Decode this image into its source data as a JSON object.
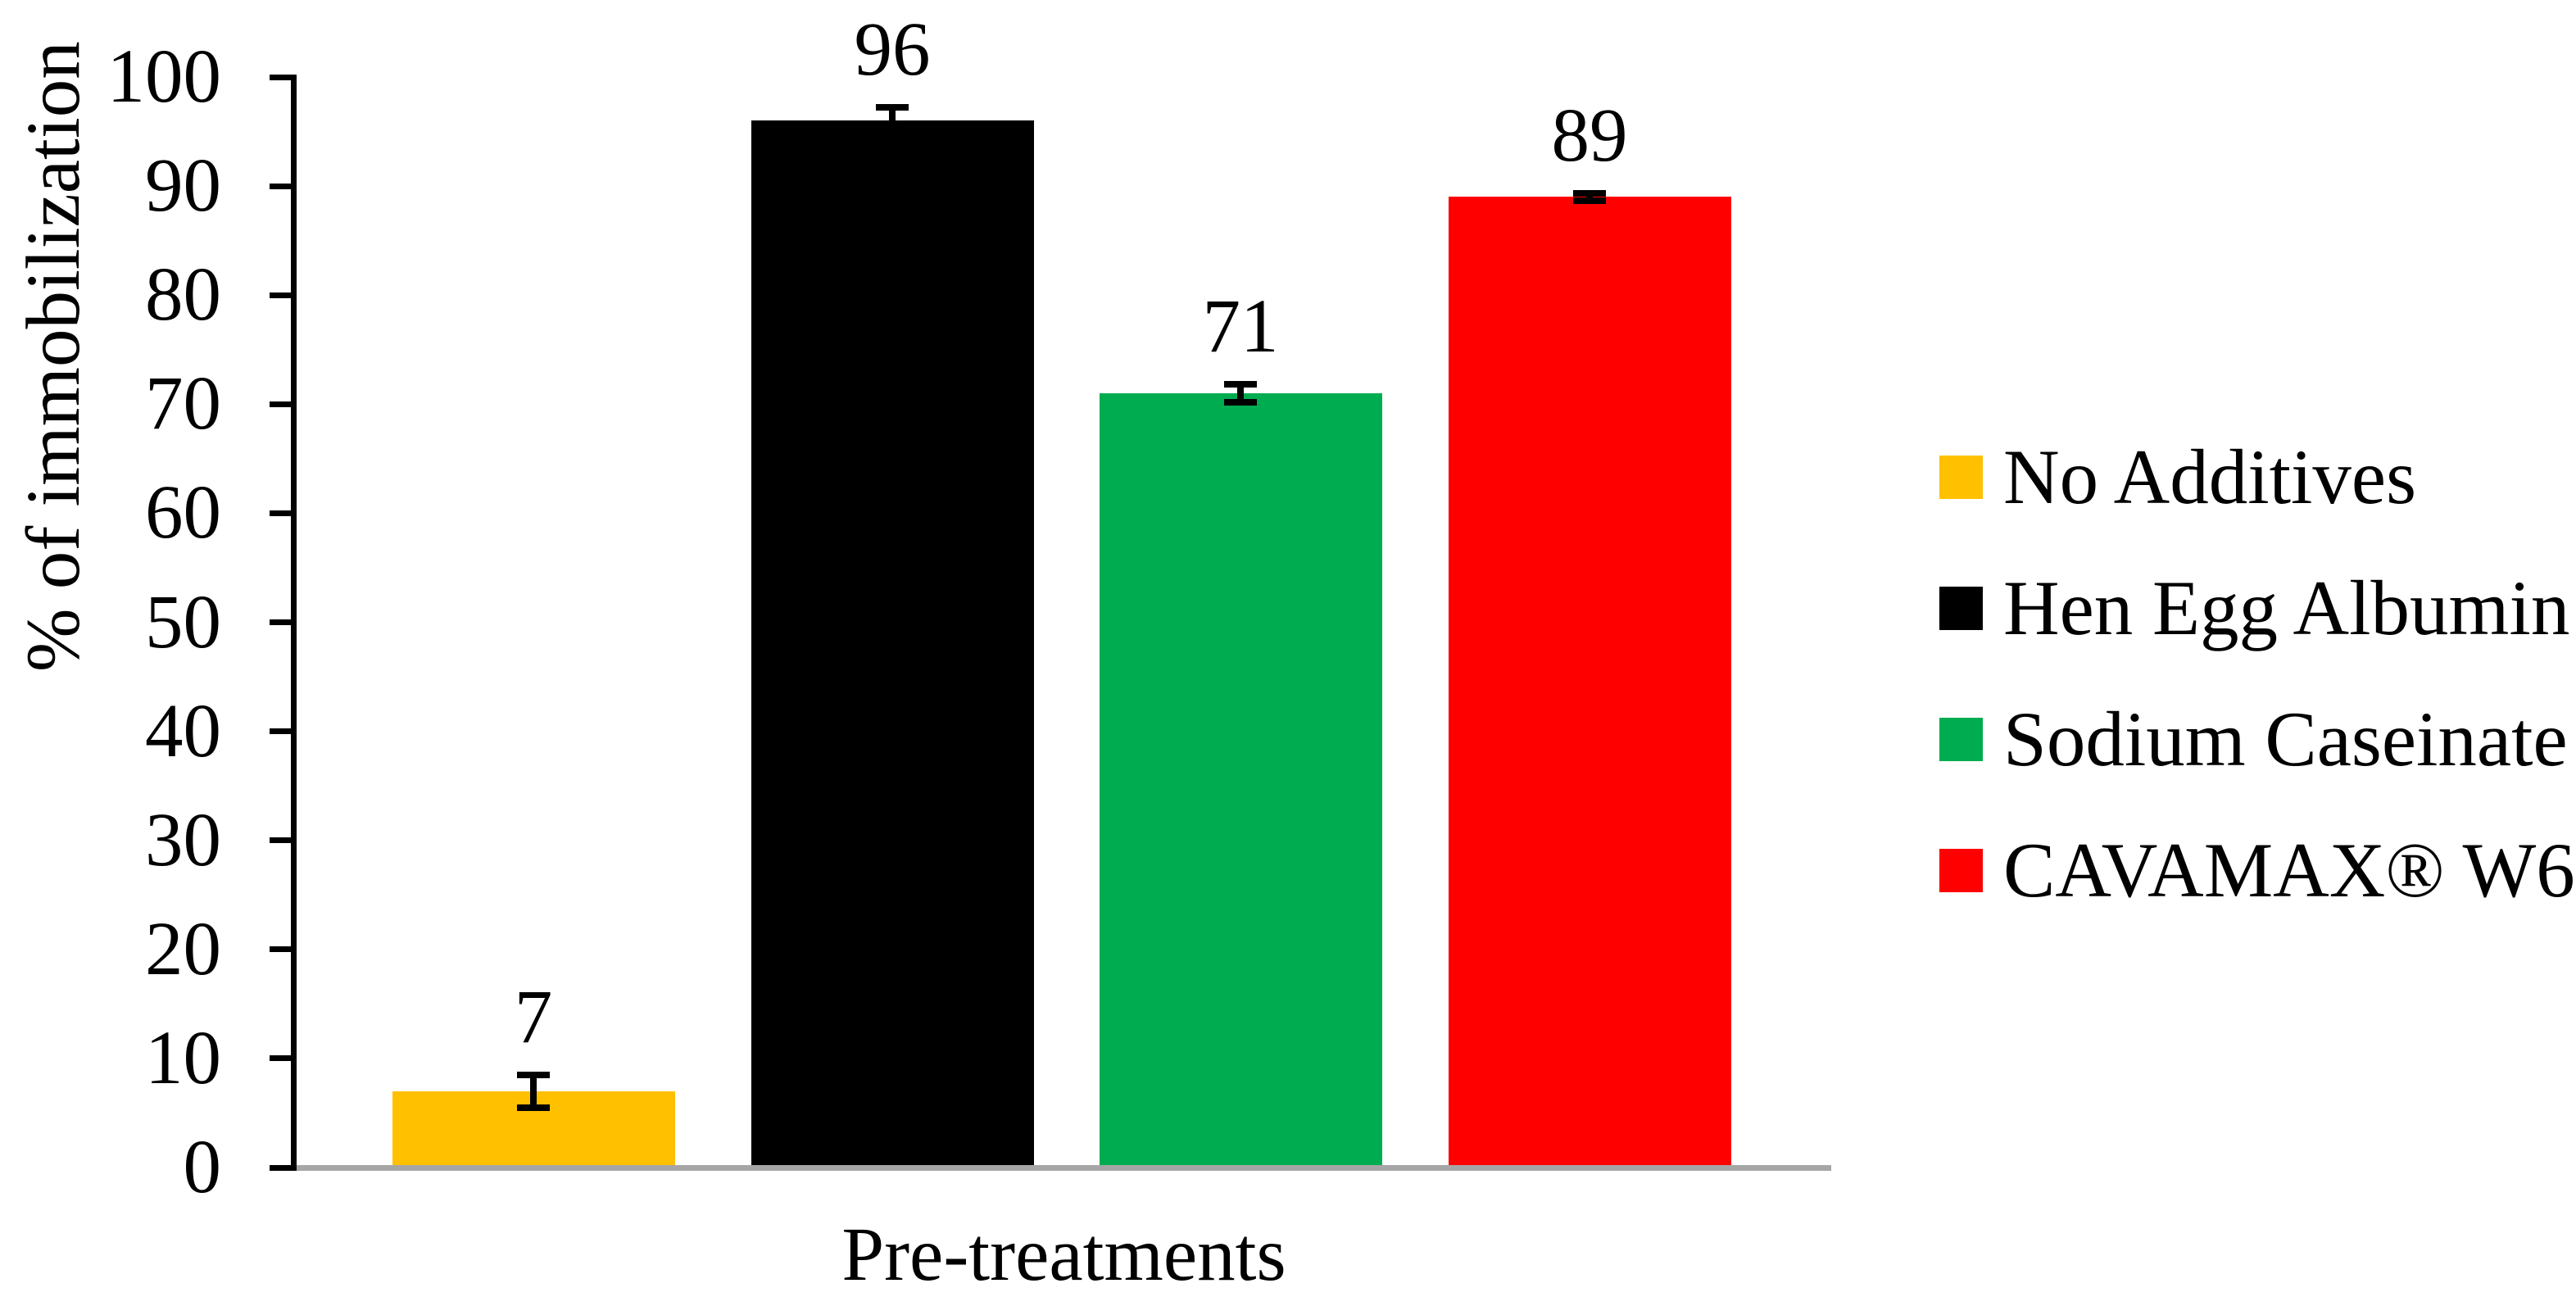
{
  "chart_data": {
    "type": "bar",
    "title": "",
    "xlabel": "Pre-treatments",
    "ylabel": "% of immobilization",
    "ylim": [
      0,
      100
    ],
    "ytick_labels": [
      "0",
      "10",
      "20",
      "30",
      "40",
      "50",
      "60",
      "70",
      "80",
      "90",
      "100"
    ],
    "grid": false,
    "legend_position": "right",
    "categories": [
      "No Additives",
      "Hen Egg Albumin",
      "Sodium Caseinate",
      "CAVAMAX® W6"
    ],
    "values": [
      7,
      96,
      71,
      89
    ],
    "bar_labels": [
      "7",
      "96",
      "71",
      "89"
    ],
    "errors": [
      1.5,
      1.2,
      0.8,
      0.35
    ],
    "colors": [
      "#FFC000",
      "#000000",
      "#00AC50",
      "#FF0000"
    ],
    "axis_line_color": "#A6A6A6",
    "tick_color": "#000000",
    "text_color": "#000000"
  }
}
